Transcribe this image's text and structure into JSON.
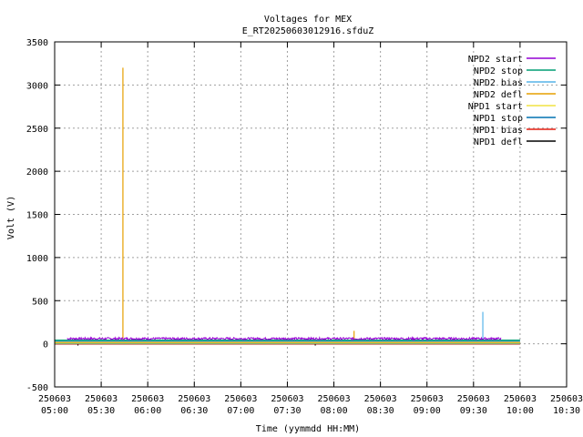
{
  "chart_data": {
    "type": "line",
    "title": "Voltages for MEX",
    "subtitle": "E_RT20250603012916.sfduZ",
    "xlabel": "Time (yymmdd HH:MM)",
    "ylabel": "Volt (V)",
    "ylim": [
      -500,
      3500
    ],
    "xlim": [
      "2025-06-03 05:00",
      "2025-06-03 10:30"
    ],
    "grid": true,
    "legend_position": "top-right",
    "y_ticks": [
      "3500",
      "3000",
      "2500",
      "2000",
      "1500",
      "1000",
      "500",
      "0",
      "-500"
    ],
    "x_ticks": [
      {
        "date": "250603",
        "time": "05:00"
      },
      {
        "date": "250603",
        "time": "05:30"
      },
      {
        "date": "250603",
        "time": "06:00"
      },
      {
        "date": "250603",
        "time": "06:30"
      },
      {
        "date": "250603",
        "time": "07:00"
      },
      {
        "date": "250603",
        "time": "07:30"
      },
      {
        "date": "250603",
        "time": "08:00"
      },
      {
        "date": "250603",
        "time": "08:30"
      },
      {
        "date": "250603",
        "time": "09:00"
      },
      {
        "date": "250603",
        "time": "09:30"
      },
      {
        "date": "250603",
        "time": "10:00"
      },
      {
        "date": "250603",
        "time": "10:30"
      }
    ],
    "series": [
      {
        "name": "NPD2 start",
        "color": "#9400d3",
        "time_range": [
          "05:08",
          "09:48"
        ],
        "baseline": 60,
        "noise": 25,
        "spikes": []
      },
      {
        "name": "NPD2 stop",
        "color": "#009e73",
        "time_range": [
          "05:00",
          "10:00"
        ],
        "baseline": 40,
        "noise": 0,
        "spikes": []
      },
      {
        "name": "NPD2 bias",
        "color": "#56b4e9",
        "time_range": [
          "05:00",
          "10:00"
        ],
        "baseline": 30,
        "noise": 0,
        "spikes": [
          {
            "time": "09:36",
            "value": 370
          }
        ]
      },
      {
        "name": "NPD2 defl",
        "color": "#e69f00",
        "time_range": [
          "05:00",
          "10:00"
        ],
        "baseline": 20,
        "noise": 0,
        "spikes": [
          {
            "time": "05:44",
            "value": 3200
          },
          {
            "time": "08:13",
            "value": 150
          }
        ]
      },
      {
        "name": "NPD1 start",
        "color": "#f0e442",
        "time_range": [
          "05:00",
          "10:00"
        ],
        "baseline": 10,
        "noise": 0,
        "spikes": []
      },
      {
        "name": "NPD1 stop",
        "color": "#0072b2",
        "time_range": [
          "05:00",
          "10:00"
        ],
        "baseline": 5,
        "noise": 0,
        "spikes": []
      },
      {
        "name": "NPD1 bias",
        "color": "#e51e10",
        "time_range": [
          "05:00",
          "10:00"
        ],
        "baseline": 0,
        "noise": 0,
        "spikes": []
      },
      {
        "name": "NPD1 defl",
        "color": "#000000",
        "time_range": [
          "05:00",
          "10:00"
        ],
        "baseline": 0,
        "noise": 0,
        "spikes": [
          {
            "time": "05:15",
            "value": -20
          },
          {
            "time": "07:48",
            "value": -20
          }
        ]
      }
    ]
  }
}
